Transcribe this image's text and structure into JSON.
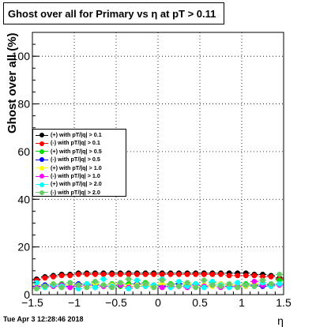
{
  "chart_data": {
    "type": "scatter",
    "title": "Ghost over all for Primary vs   η at pT > 0.11",
    "xlabel": "η",
    "ylabel": "Ghost over all (%)",
    "xlim": [
      -1.5,
      1.5
    ],
    "ylim": [
      0,
      110
    ],
    "xticks": [
      "−1.5",
      "−1",
      "−0.5",
      "0",
      "0.5",
      "1",
      "1.5"
    ],
    "yticks": [
      "0",
      "20",
      "40",
      "60",
      "80",
      "100"
    ],
    "grid": true,
    "legend_position": "center-left",
    "x": [
      -1.45,
      -1.35,
      -1.25,
      -1.15,
      -1.05,
      -0.95,
      -0.85,
      -0.75,
      -0.65,
      -0.55,
      -0.45,
      -0.35,
      -0.25,
      -0.15,
      -0.05,
      0.05,
      0.15,
      0.25,
      0.35,
      0.45,
      0.55,
      0.65,
      0.75,
      0.85,
      0.95,
      1.05,
      1.15,
      1.25,
      1.35,
      1.45
    ],
    "series": [
      {
        "name": "(+) with pT/|q| > 0.1",
        "color": "#000000",
        "values": [
          6.5,
          7.5,
          8.0,
          8.5,
          8.5,
          9.0,
          9.0,
          9.0,
          9.0,
          9.0,
          9.0,
          9.0,
          9.0,
          9.0,
          9.0,
          9.0,
          9.0,
          9.0,
          9.0,
          9.0,
          9.0,
          9.0,
          9.0,
          9.0,
          9.0,
          9.0,
          8.5,
          8.5,
          8.0,
          7.0
        ]
      },
      {
        "name": "(-) with pT/|q| > 0.1",
        "color": "#ff0000",
        "values": [
          6.0,
          7.0,
          7.5,
          8.0,
          8.0,
          8.5,
          8.5,
          8.5,
          8.5,
          8.5,
          8.5,
          8.5,
          8.5,
          8.5,
          8.5,
          8.5,
          8.5,
          8.5,
          8.5,
          8.5,
          8.5,
          8.5,
          8.5,
          8.0,
          8.0,
          8.0,
          8.0,
          7.5,
          7.5,
          6.5
        ]
      },
      {
        "name": "(+) with pT/|q| > 0.5",
        "color": "#00dd00",
        "values": [
          4.0,
          4.0,
          3.5,
          4.5,
          4.0,
          3.5,
          4.5,
          5.0,
          4.0,
          4.5,
          3.5,
          4.5,
          4.5,
          5.0,
          4.0,
          4.0,
          4.5,
          3.5,
          4.0,
          4.5,
          3.5,
          5.0,
          4.5,
          4.0,
          4.0,
          4.5,
          3.5,
          4.0,
          4.5,
          6.0
        ]
      },
      {
        "name": "(-) with pT/|q| > 0.5",
        "color": "#0000ff",
        "values": [
          3.5,
          4.0,
          4.0,
          3.5,
          3.5,
          4.5,
          4.0,
          4.0,
          3.5,
          4.0,
          4.0,
          3.5,
          4.5,
          4.0,
          4.0,
          3.5,
          4.0,
          4.5,
          3.5,
          4.0,
          3.5,
          4.0,
          4.5,
          3.5,
          4.0,
          3.5,
          4.0,
          3.5,
          4.0,
          4.5
        ]
      },
      {
        "name": "(+) with pT/|q| > 1.0",
        "color": "#ffff00",
        "values": [
          4.0,
          3.5,
          4.5,
          3.5,
          4.0,
          4.0,
          3.5,
          4.5,
          3.5,
          4.0,
          4.5,
          3.5,
          4.0,
          4.0,
          3.5,
          4.5,
          4.0,
          3.5,
          4.5,
          3.5,
          4.0,
          3.5,
          4.5,
          4.0,
          4.0,
          3.5,
          4.5,
          4.0,
          3.5,
          4.5
        ]
      },
      {
        "name": "(-) with pT/|q| > 1.0",
        "color": "#ff00ff",
        "values": [
          3.0,
          3.5,
          3.5,
          4.0,
          3.0,
          3.5,
          4.0,
          3.0,
          3.5,
          3.5,
          4.0,
          3.0,
          3.5,
          3.5,
          4.0,
          3.0,
          3.5,
          3.5,
          3.0,
          4.0,
          3.5,
          4.0,
          3.0,
          3.5,
          3.5,
          4.0,
          5.5,
          4.0,
          3.5,
          4.0
        ]
      },
      {
        "name": "(+) with pT/|q| > 2.0",
        "color": "#00ffff",
        "values": [
          5.0,
          3.0,
          4.0,
          3.5,
          5.0,
          2.5,
          4.5,
          3.0,
          6.5,
          3.5,
          5.0,
          2.5,
          6.0,
          3.5,
          4.0,
          6.5,
          3.0,
          5.5,
          3.5,
          4.5,
          3.0,
          5.5,
          4.0,
          3.0,
          5.0,
          4.0,
          3.5,
          5.0,
          3.5,
          4.5
        ]
      },
      {
        "name": "(-) with pT/|q| > 2.0",
        "color": "#66cc66",
        "values": [
          2.5,
          3.5,
          4.5,
          3.0,
          5.0,
          4.0,
          3.0,
          5.5,
          4.0,
          3.0,
          5.0,
          6.5,
          3.5,
          4.5,
          3.0,
          6.0,
          4.0,
          3.5,
          5.0,
          3.0,
          6.0,
          4.0,
          3.5,
          4.5,
          3.0,
          4.0,
          3.5,
          6.0,
          4.5,
          8.5
        ]
      }
    ]
  },
  "footer": {
    "timestamp": "Tue Apr  3 12:28:46 2018"
  }
}
